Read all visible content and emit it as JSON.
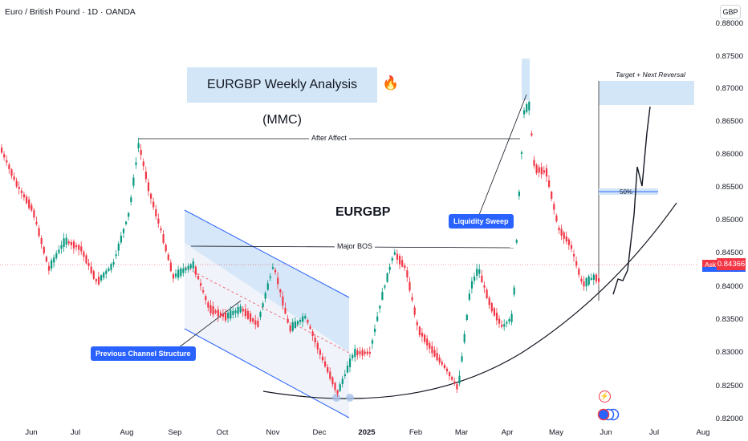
{
  "header": {
    "symbol_title": "Euro / British Pound · 1D · OANDA"
  },
  "price_scale": {
    "currency": "GBP",
    "ticks": [
      "0.88000",
      "0.87500",
      "0.87000",
      "0.86500",
      "0.86000",
      "0.85500",
      "0.85000",
      "0.84500",
      "0.84000",
      "0.83500",
      "0.83000",
      "0.82500",
      "0.82000"
    ],
    "ask_label": "Ask",
    "current_price": "0.84366"
  },
  "time_axis": {
    "labels": [
      "Jun",
      "Jul",
      "Aug",
      "Sep",
      "Oct",
      "Nov",
      "Dec",
      "2025",
      "Feb",
      "Mar",
      "Apr",
      "May",
      "Jun",
      "Jul",
      "Aug"
    ]
  },
  "annotations": {
    "title": "EURGBP Weekly Analysis (MMC)",
    "symbol_big": "EURGBP",
    "after_affect": "After Affect",
    "major_bos": "Major BOS",
    "liquidity_sweep": "Liquidity Sweep",
    "previous_channel": "Previous Channel Structure",
    "target": "Target + Next Reversal",
    "fifty": "50%"
  },
  "icons": {
    "fire": "fire-icon",
    "flash": "flash-icon",
    "events": "events-icon"
  },
  "colors": {
    "up": "#089981",
    "down": "#f23645",
    "accent": "#2962ff",
    "zone": "#d2e6f7"
  }
}
